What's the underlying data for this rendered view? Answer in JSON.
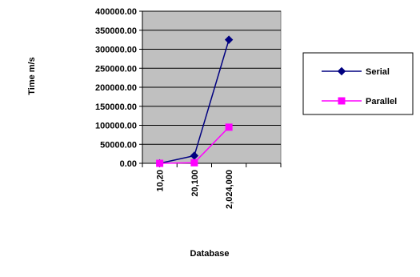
{
  "chart_data": {
    "type": "line",
    "categories": [
      "10,20",
      "20,100",
      "2,024,000"
    ],
    "series": [
      {
        "name": "Serial",
        "values": [
          0,
          20000,
          325000
        ],
        "color": "#000080",
        "marker": "diamond"
      },
      {
        "name": "Parallel",
        "values": [
          0,
          1500,
          95000
        ],
        "color": "#FF00FF",
        "marker": "square"
      }
    ],
    "ylabel": "Time m/s",
    "xlabel": "Database",
    "ylim": [
      0,
      400000
    ],
    "yticks": [
      "0.00",
      "50000.00",
      "100000.00",
      "150000.00",
      "200000.00",
      "250000.00",
      "300000.00",
      "350000.00",
      "400000.00"
    ],
    "plot_background": "#C0C0C0",
    "grid": true,
    "legend_position": "right"
  }
}
